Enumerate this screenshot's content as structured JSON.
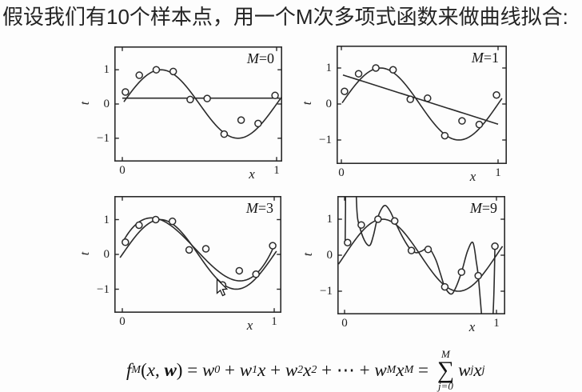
{
  "title": {
    "text": "假设我们有10个样本点，用一个M次多项式函数来做曲线拟合:"
  },
  "colors": {
    "ink": "#2b2b2b",
    "background": "#fdfdfd"
  },
  "sample_points": {
    "x": [
      0.02,
      0.11,
      0.22,
      0.33,
      0.44,
      0.55,
      0.66,
      0.77,
      0.88,
      0.99
    ],
    "t": [
      0.35,
      0.84,
      1.0,
      0.95,
      0.13,
      0.16,
      -0.88,
      -0.47,
      -0.57,
      0.25
    ]
  },
  "chart_data": [
    {
      "type": "line",
      "title": "M=0",
      "xlabel": "x",
      "ylabel": "t",
      "xlim": [
        -0.05,
        1.04
      ],
      "ylim": [
        -1.68,
        1.68
      ],
      "grid": false,
      "xticks": [
        {
          "v": 0,
          "label": "0"
        },
        {
          "v": 1,
          "label": "1"
        }
      ],
      "yticks": [
        {
          "v": 1,
          "label": "1"
        },
        {
          "v": 0,
          "label": "0"
        },
        {
          "v": -1,
          "label": "−1"
        }
      ],
      "curves": [
        {
          "name": "true-sine",
          "kind": "sine",
          "expr": "sin(2πx)",
          "range": [
            0.01,
            1.04
          ]
        },
        {
          "name": "fit-M0",
          "kind": "poly",
          "coef": [
            0.17
          ],
          "range": [
            0.0,
            1.02
          ]
        }
      ]
    },
    {
      "type": "line",
      "title": "M=1",
      "xlabel": "x",
      "ylabel": "t",
      "xlim": [
        -0.03,
        1.06
      ],
      "ylim": [
        -1.62,
        1.64
      ],
      "grid": false,
      "xticks": [
        {
          "v": 0,
          "label": "0"
        },
        {
          "v": 1,
          "label": "1"
        }
      ],
      "yticks": [
        {
          "v": 1,
          "label": "1"
        },
        {
          "v": 0,
          "label": "0"
        },
        {
          "v": -1,
          "label": "−1"
        }
      ],
      "curves": [
        {
          "name": "true-sine",
          "kind": "sine",
          "expr": "sin(2πx)",
          "range": [
            0.005,
            1.03
          ]
        },
        {
          "name": "fit-M1",
          "kind": "poly",
          "coef": [
            0.82,
            -1.38
          ],
          "range": [
            0.01,
            1.0
          ]
        }
      ]
    },
    {
      "type": "line",
      "title": "M=3",
      "xlabel": "x",
      "ylabel": "t",
      "xlim": [
        -0.05,
        1.05
      ],
      "ylim": [
        -1.68,
        1.68
      ],
      "grid": false,
      "xticks": [
        {
          "v": 0,
          "label": "0"
        },
        {
          "v": 1,
          "label": "1"
        }
      ],
      "yticks": [
        {
          "v": 1,
          "label": "1"
        },
        {
          "v": 0,
          "label": "0"
        },
        {
          "v": -1,
          "label": "−1"
        }
      ],
      "curves": [
        {
          "name": "true-sine",
          "kind": "sine",
          "expr": "sin(2πx)",
          "range": [
            -0.015,
            1.02
          ]
        },
        {
          "name": "fit-M3",
          "kind": "poly",
          "coef": [
            0.33,
            8.16,
            -26.48,
            18.24
          ],
          "range": [
            0.0,
            1.0
          ]
        }
      ]
    },
    {
      "type": "line",
      "title": "M=9",
      "xlabel": "x",
      "ylabel": "t",
      "xlim": [
        -0.05,
        1.06
      ],
      "ylim": [
        -1.64,
        1.64
      ],
      "grid": false,
      "xticks": [
        {
          "v": 0,
          "label": "0"
        },
        {
          "v": 1,
          "label": "1"
        }
      ],
      "yticks": [
        {
          "v": 1,
          "label": "1"
        },
        {
          "v": 0,
          "label": "0"
        },
        {
          "v": -1,
          "label": "−1"
        }
      ],
      "curves": [
        {
          "name": "true-sine",
          "kind": "sine",
          "expr": "sin(2πx)",
          "range": [
            -0.04,
            1.04
          ]
        },
        {
          "name": "fit-M9",
          "kind": "samples",
          "pts": [
            [
              0.004,
              0.38
            ],
            [
              0.006,
              1.2
            ],
            [
              0.01,
              2.2
            ],
            [
              0.04,
              2.8
            ],
            [
              0.07,
              2.2
            ],
            [
              0.082,
              1.2
            ],
            [
              0.095,
              0.85
            ],
            [
              0.13,
              0.42
            ],
            [
              0.165,
              0.27
            ],
            [
              0.19,
              0.55
            ],
            [
              0.215,
              1.0
            ],
            [
              0.245,
              1.3
            ],
            [
              0.27,
              1.38
            ],
            [
              0.3,
              1.22
            ],
            [
              0.33,
              0.95
            ],
            [
              0.38,
              0.52
            ],
            [
              0.43,
              0.18
            ],
            [
              0.47,
              0.07
            ],
            [
              0.51,
              0.12
            ],
            [
              0.555,
              0.2
            ],
            [
              0.6,
              -0.12
            ],
            [
              0.63,
              -0.5
            ],
            [
              0.66,
              -0.88
            ],
            [
              0.7,
              -1.08
            ],
            [
              0.73,
              -0.92
            ],
            [
              0.77,
              -0.47
            ],
            [
              0.81,
              0.12
            ],
            [
              0.845,
              0.35
            ],
            [
              0.868,
              -0.2
            ],
            [
              0.88,
              -0.57
            ],
            [
              0.895,
              -1.3
            ],
            [
              0.915,
              -2.3
            ],
            [
              0.94,
              -3.2
            ],
            [
              0.965,
              -2.6
            ],
            [
              0.982,
              -1.2
            ],
            [
              0.99,
              0.25
            ]
          ]
        }
      ]
    }
  ],
  "formula": {
    "segments": [
      {
        "k": "i",
        "v": "f"
      },
      {
        "k": "sub",
        "v": "M"
      },
      {
        "k": "r",
        "v": "("
      },
      {
        "k": "i",
        "v": "x"
      },
      {
        "k": "r",
        "v": ", "
      },
      {
        "k": "b",
        "v": "w"
      },
      {
        "k": "r",
        "v": ") = "
      },
      {
        "k": "i",
        "v": "w"
      },
      {
        "k": "sub",
        "v": "0"
      },
      {
        "k": "r",
        "v": " + "
      },
      {
        "k": "i",
        "v": "w"
      },
      {
        "k": "sub",
        "v": "1"
      },
      {
        "k": "i",
        "v": "x"
      },
      {
        "k": "r",
        "v": " + "
      },
      {
        "k": "i",
        "v": "w"
      },
      {
        "k": "sub",
        "v": "2"
      },
      {
        "k": "i",
        "v": "x"
      },
      {
        "k": "sup",
        "v": "2"
      },
      {
        "k": "r",
        "v": " + ⋯ + "
      },
      {
        "k": "i",
        "v": "w"
      },
      {
        "k": "sub",
        "v": "M"
      },
      {
        "k": "i",
        "v": "x"
      },
      {
        "k": "sup",
        "v": "M"
      },
      {
        "k": "r",
        "v": " = "
      },
      {
        "k": "sum",
        "top": "M",
        "bottom": "j=0",
        "sigma": "∑"
      },
      {
        "k": "i",
        "v": "w"
      },
      {
        "k": "sub",
        "v": "j"
      },
      {
        "k": "i",
        "v": "x"
      },
      {
        "k": "sup",
        "v": "j"
      }
    ]
  },
  "ui": {
    "mouse_cursor_visible": true
  }
}
